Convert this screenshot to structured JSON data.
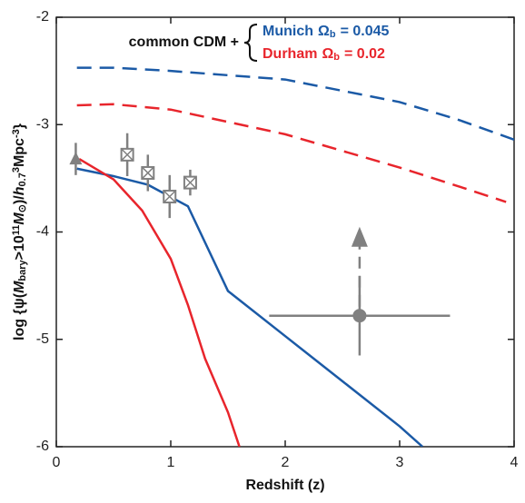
{
  "chart_data": {
    "type": "line",
    "xlabel": "Redshift (z)",
    "ylabel_parts": [
      {
        "text": "log {ψ("
      },
      {
        "text": "M",
        "italic": true
      },
      {
        "text": "bary",
        "sub": true
      },
      {
        "text": ">10"
      },
      {
        "text": "11",
        "sup": true
      },
      {
        "text": "M",
        "italic": true
      },
      {
        "text": "⊙",
        "sub": true
      },
      {
        "text": ")/"
      },
      {
        "text": "h",
        "italic": true
      },
      {
        "text": "0.7",
        "sub": true
      },
      {
        "text": "3",
        "sup": true
      },
      {
        "text": "Mpc"
      },
      {
        "text": "-3",
        "sup": true
      },
      {
        "text": "}"
      }
    ],
    "legend_prefix": "common CDM +",
    "xlim": [
      0,
      4
    ],
    "xticks": [
      0,
      1,
      2,
      3,
      4
    ],
    "ylim": [
      -6,
      -2
    ],
    "yticks": [
      -6,
      -5,
      -4,
      -3,
      -2
    ],
    "series": [
      {
        "name": "Munich",
        "param": "Ω",
        "param_sub": "b",
        "param_value": "= 0.045",
        "color": "#1b5aa6",
        "dashed": true,
        "legend": true,
        "x": [
          0.18,
          0.5,
          1,
          2,
          3,
          3.5,
          4
        ],
        "values": [
          -2.47,
          -2.47,
          -2.5,
          -2.58,
          -2.79,
          -2.95,
          -3.14
        ]
      },
      {
        "name": "Durham",
        "param": "Ω",
        "param_sub": "b",
        "param_value": "= 0.02",
        "color": "#e8252c",
        "dashed": true,
        "legend": true,
        "x": [
          0.18,
          0.5,
          1,
          2,
          3,
          3.5,
          3.93
        ],
        "values": [
          -2.82,
          -2.81,
          -2.86,
          -3.09,
          -3.4,
          -3.57,
          -3.72
        ]
      },
      {
        "color": "#1b5aa6",
        "dashed": false,
        "x": [
          0.18,
          0.5,
          0.8,
          1.15,
          1.5,
          2,
          2.5,
          3,
          3.2
        ],
        "values": [
          -3.41,
          -3.48,
          -3.56,
          -3.76,
          -4.55,
          -4.97,
          -5.39,
          -5.81,
          -6
        ]
      },
      {
        "color": "#e8252c",
        "dashed": false,
        "x": [
          0.2,
          0.5,
          0.75,
          1,
          1.15,
          1.3,
          1.5,
          1.6
        ],
        "values": [
          -3.32,
          -3.51,
          -3.8,
          -4.25,
          -4.68,
          -5.18,
          -5.68,
          -6
        ]
      }
    ],
    "observations": [
      {
        "marker": "triangle",
        "color": "#808080",
        "x": 0.17,
        "y": -3.32,
        "yerr": 0.15
      },
      {
        "marker": "crossed-square",
        "color": "#808080",
        "x": 0.62,
        "y": -3.28,
        "yerr": 0.2
      },
      {
        "marker": "crossed-square",
        "color": "#808080",
        "x": 0.8,
        "y": -3.45,
        "yerr": 0.17
      },
      {
        "marker": "crossed-square",
        "color": "#808080",
        "x": 0.99,
        "y": -3.67,
        "yerr": 0.2
      },
      {
        "marker": "crossed-square",
        "color": "#808080",
        "x": 1.17,
        "y": -3.54,
        "yerr": 0.12
      },
      {
        "marker": "circle",
        "color": "#808080",
        "x": 2.65,
        "y": -4.78,
        "yerr": 0.37,
        "xerr": 0.79,
        "lower_limit": true
      }
    ]
  }
}
